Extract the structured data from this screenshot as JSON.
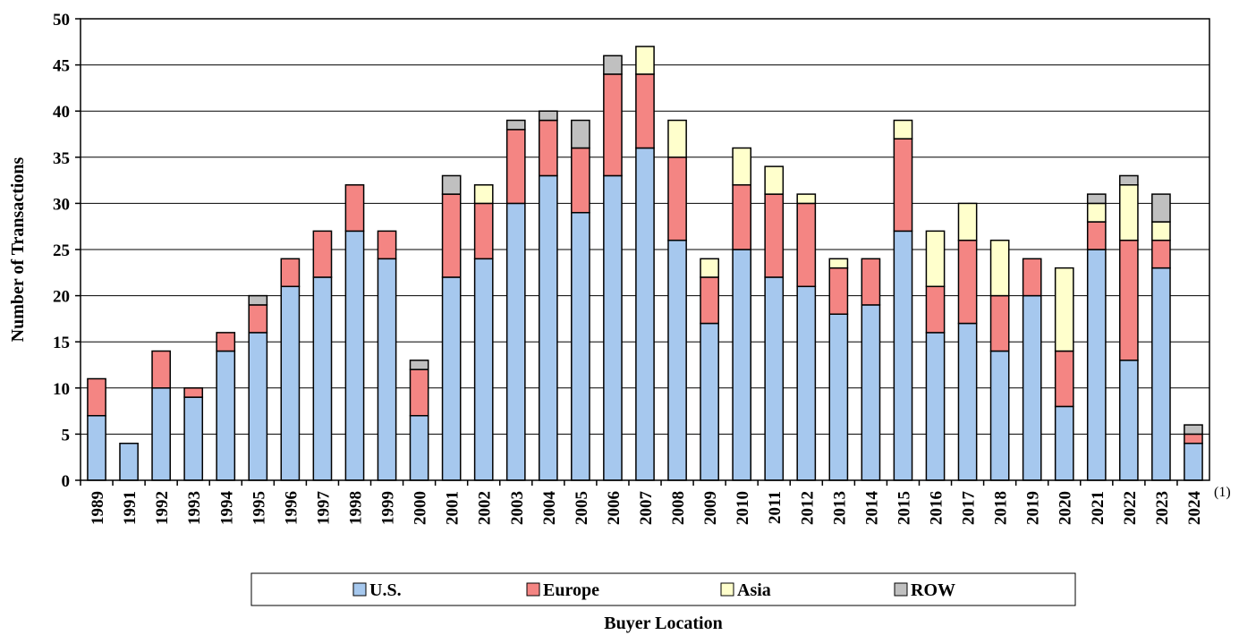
{
  "chart_data": {
    "type": "bar",
    "stacked": true,
    "ylabel": "Number of Transactions",
    "legend_title": "Buyer Location",
    "legend_position": "bottom",
    "footnote": "(1)",
    "ylim": [
      0,
      50
    ],
    "yticks": [
      0,
      5,
      10,
      15,
      20,
      25,
      30,
      35,
      40,
      45,
      50
    ],
    "grid": true,
    "categories": [
      "1989",
      "1991",
      "1992",
      "1993",
      "1994",
      "1995",
      "1996",
      "1997",
      "1998",
      "1999",
      "2000",
      "2001",
      "2002",
      "2003",
      "2004",
      "2005",
      "2006",
      "2007",
      "2008",
      "2009",
      "2010",
      "2011",
      "2012",
      "2013",
      "2014",
      "2015",
      "2016",
      "2017",
      "2018",
      "2019",
      "2020",
      "2021",
      "2022",
      "2023",
      "2024"
    ],
    "series": [
      {
        "name": "U.S.",
        "color": "#a6c8ee",
        "values": [
          7,
          4,
          10,
          9,
          14,
          16,
          21,
          22,
          27,
          24,
          7,
          22,
          24,
          30,
          33,
          29,
          33,
          36,
          26,
          17,
          25,
          22,
          21,
          18,
          19,
          27,
          16,
          17,
          14,
          20,
          8,
          25,
          13,
          23,
          4
        ]
      },
      {
        "name": "Europe",
        "color": "#f48583",
        "values": [
          4,
          0,
          4,
          1,
          2,
          3,
          3,
          5,
          5,
          3,
          5,
          9,
          6,
          8,
          6,
          7,
          11,
          8,
          9,
          5,
          7,
          9,
          9,
          5,
          5,
          10,
          5,
          9,
          6,
          4,
          6,
          3,
          13,
          3,
          1
        ]
      },
      {
        "name": "Asia",
        "color": "#ffffcc",
        "values": [
          0,
          0,
          0,
          0,
          0,
          0,
          0,
          0,
          0,
          0,
          0,
          0,
          2,
          0,
          0,
          0,
          0,
          3,
          4,
          2,
          4,
          3,
          1,
          1,
          0,
          2,
          6,
          4,
          6,
          0,
          9,
          2,
          6,
          2,
          0
        ]
      },
      {
        "name": "ROW",
        "color": "#c0c0c0",
        "values": [
          0,
          0,
          0,
          0,
          0,
          1,
          0,
          0,
          0,
          0,
          1,
          2,
          0,
          1,
          1,
          3,
          2,
          0,
          0,
          0,
          0,
          0,
          0,
          0,
          0,
          0,
          0,
          0,
          0,
          0,
          0,
          1,
          1,
          3,
          1
        ]
      }
    ]
  }
}
